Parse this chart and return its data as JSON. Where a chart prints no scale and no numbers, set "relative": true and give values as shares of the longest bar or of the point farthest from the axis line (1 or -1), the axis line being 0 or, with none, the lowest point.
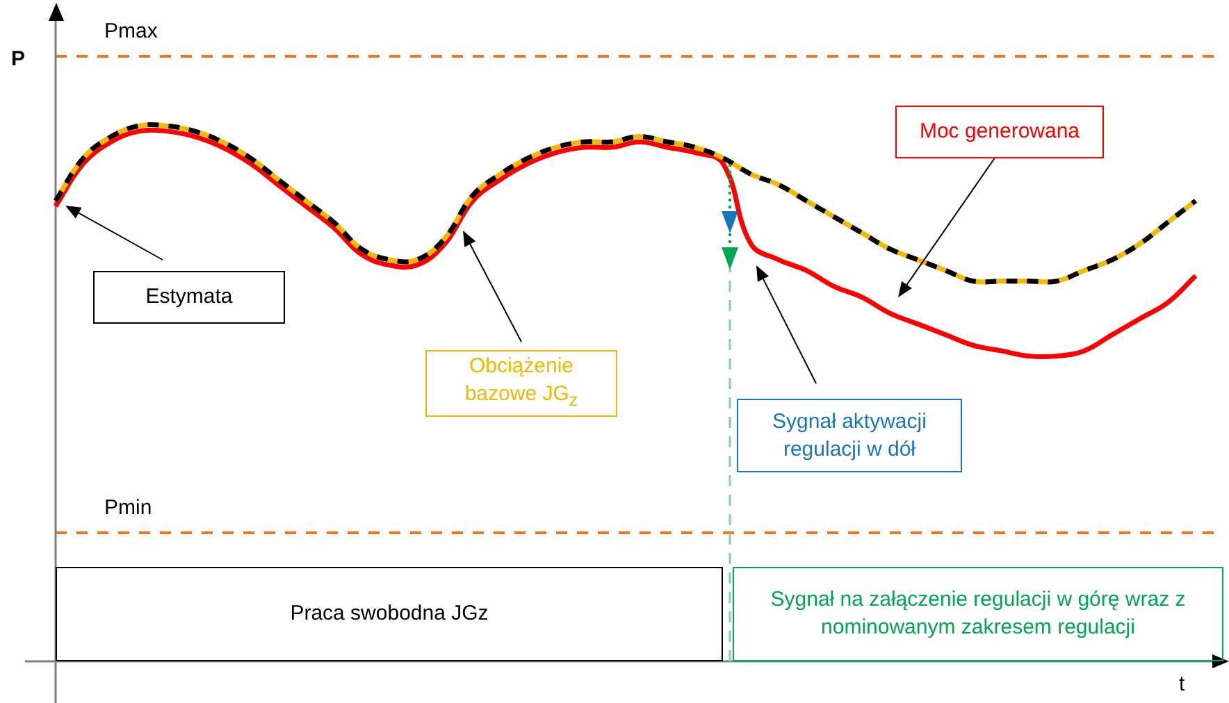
{
  "chart_data": {
    "type": "line",
    "relative": true,
    "xlabel": "t",
    "ylabel": "P",
    "categories": [
      null,
      null,
      null,
      null,
      null,
      null,
      null,
      null,
      null,
      null,
      null,
      null,
      null,
      null,
      null,
      null,
      null,
      null,
      null,
      null,
      null,
      null,
      null,
      null,
      null,
      null,
      null,
      null,
      null,
      null,
      null,
      null,
      null,
      null,
      null,
      null,
      null,
      null,
      null,
      null,
      null,
      null,
      null
    ],
    "series": [
      {
        "name": "Moc generowana",
        "color": "#ff0000",
        "line_style": "solid",
        "values": [
          0.85,
          0.93,
          0.97,
          0.99,
          0.99,
          0.98,
          0.96,
          0.93,
          0.89,
          0.85,
          0.81,
          0.76,
          0.74,
          0.74,
          0.78,
          0.86,
          0.9,
          0.93,
          0.95,
          0.96,
          0.96,
          0.97,
          0.96,
          0.95,
          0.93,
          0.78,
          0.75,
          0.73,
          0.7,
          0.68,
          0.65,
          0.63,
          0.61,
          0.59,
          0.58,
          0.57,
          0.57,
          0.58,
          0.61,
          0.64,
          0.67,
          0.72,
          null
        ]
      },
      {
        "name": "Obciążenie bazowe JG$_{z}$",
        "color": "#f5b800",
        "line_style": "solid",
        "values": [
          0.86,
          0.94,
          0.98,
          1.0,
          1.0,
          0.99,
          0.97,
          0.94,
          0.9,
          0.86,
          0.82,
          0.77,
          0.75,
          0.75,
          0.79,
          0.87,
          0.91,
          0.94,
          0.96,
          0.97,
          0.97,
          0.98,
          0.97,
          0.96,
          0.94,
          0.91,
          0.89,
          0.86,
          0.83,
          0.8,
          0.77,
          0.75,
          0.73,
          0.71,
          0.71,
          0.71,
          0.71,
          0.73,
          0.75,
          0.78,
          0.82,
          0.86,
          null
        ]
      },
      {
        "name": "Estymata",
        "color": "#000000",
        "line_style": "dashed",
        "values": [
          0.86,
          0.94,
          0.98,
          1.0,
          1.0,
          0.99,
          0.97,
          0.94,
          0.9,
          0.86,
          0.82,
          0.77,
          0.75,
          0.75,
          0.79,
          0.87,
          0.91,
          0.94,
          0.96,
          0.97,
          0.97,
          0.98,
          0.97,
          0.96,
          0.94,
          0.91,
          0.89,
          0.86,
          0.83,
          0.8,
          0.77,
          0.75,
          0.73,
          0.71,
          0.71,
          0.71,
          0.71,
          0.73,
          0.75,
          0.78,
          0.82,
          0.86,
          null
        ]
      }
    ],
    "ref_lines": [
      {
        "axis": "y",
        "value": 1.13,
        "label": "Pmax",
        "color": "#f47321",
        "line_style": "dashed"
      },
      {
        "axis": "y",
        "value": 0.24,
        "label": "Pmin",
        "color": "#f47321",
        "line_style": "dashed"
      }
    ],
    "annotations": [
      "Sygnał aktywacji regulacji w dół",
      "Praca swobodna JGz",
      "Sygnał na załączenie regulacji w górę wraz z nominowanym zakresem regulacji"
    ],
    "marker": "none"
  }
}
